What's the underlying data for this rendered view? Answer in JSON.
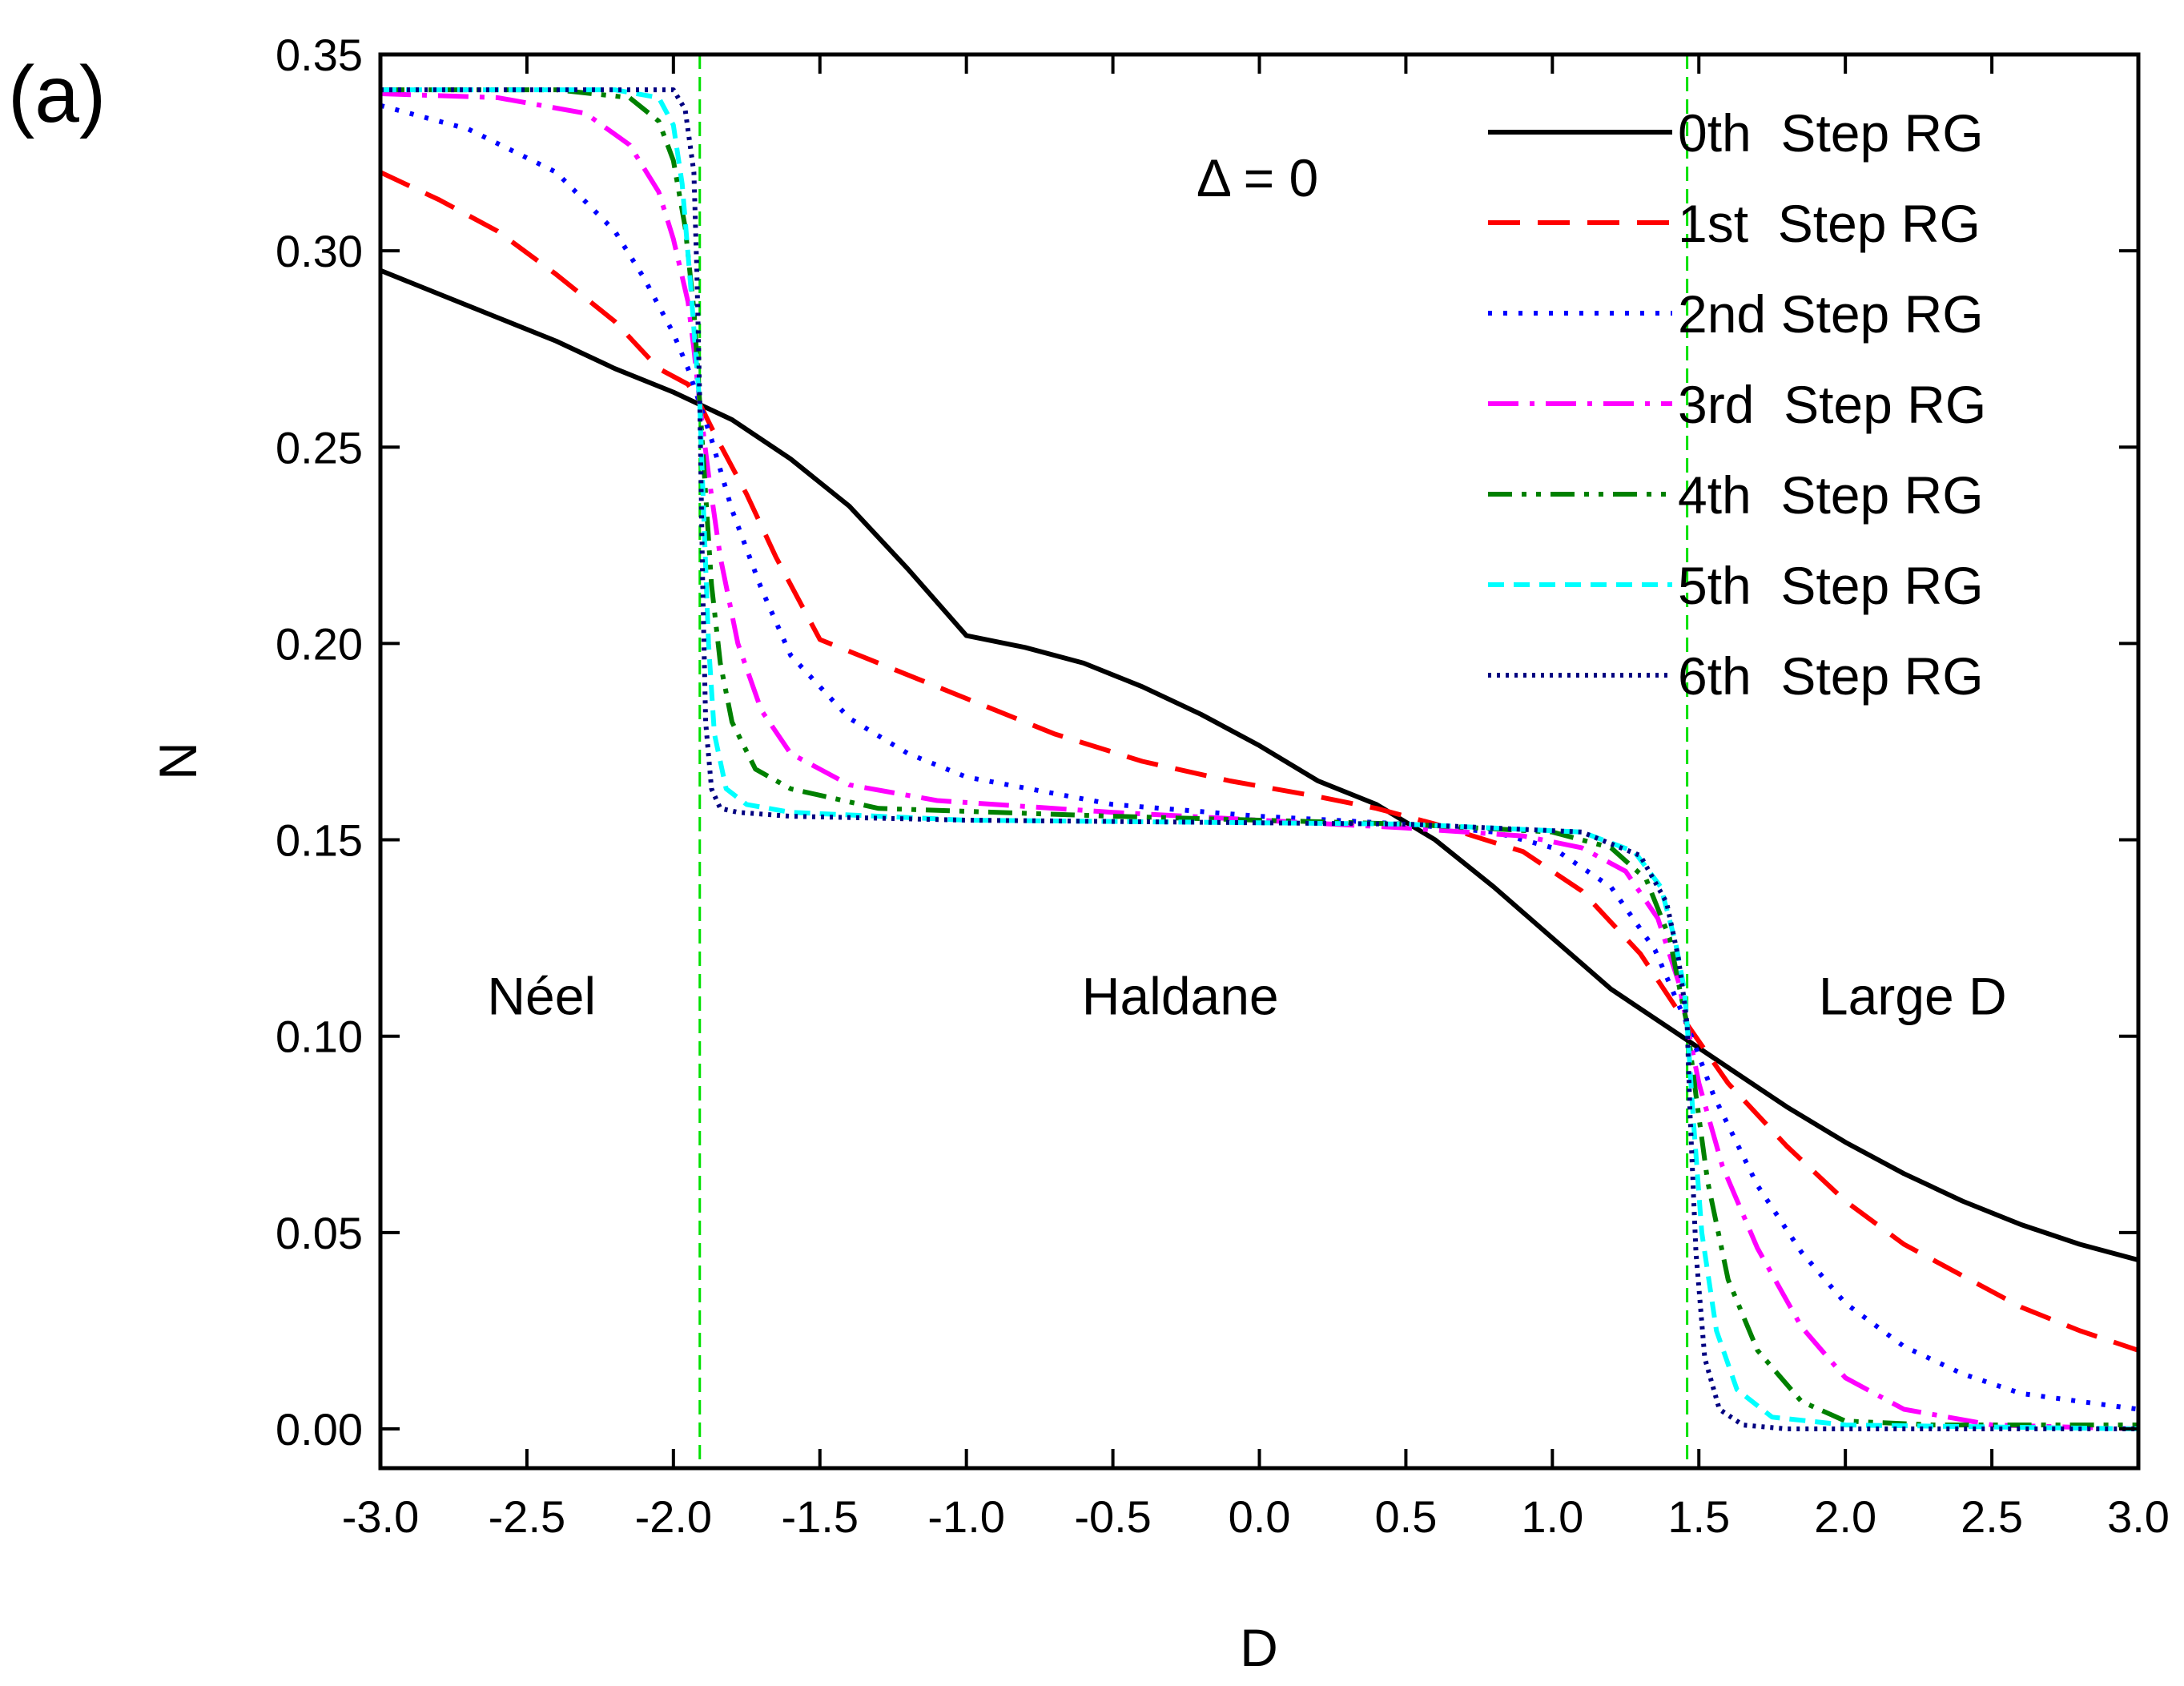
{
  "panel_label": "(a)",
  "chart_data": {
    "type": "line",
    "xlabel": "D",
    "ylabel": "N",
    "xlim": [
      -3.0,
      3.0
    ],
    "ylim": [
      -0.01,
      0.35
    ],
    "x_ticks": [
      -3.0,
      -2.5,
      -2.0,
      -1.5,
      -1.0,
      -0.5,
      0.0,
      0.5,
      1.0,
      1.5,
      2.0,
      2.5,
      3.0
    ],
    "x_tick_labels": [
      "-3.0",
      "-2.5",
      "-2.0",
      "-1.5",
      "-1.0",
      "-0.5",
      "0.0",
      "0.5",
      "1.0",
      "1.5",
      "2.0",
      "2.5",
      "3.0"
    ],
    "y_ticks": [
      0.0,
      0.05,
      0.1,
      0.15,
      0.2,
      0.25,
      0.3,
      0.35
    ],
    "y_tick_labels": [
      "0.00",
      "0.05",
      "0.10",
      "0.15",
      "0.20",
      "0.25",
      "0.30",
      "0.35"
    ],
    "annotation": "Δ = 0",
    "legend_position": "top-right",
    "phase_boundaries": [
      {
        "x": -1.91,
        "color": "#00E000"
      },
      {
        "x": 1.46,
        "color": "#00E000"
      }
    ],
    "region_labels": [
      {
        "text": "Néel",
        "x": -2.45,
        "y": 0.11
      },
      {
        "text": "Haldane",
        "x": -0.27,
        "y": 0.11
      },
      {
        "text": "Large D",
        "x": 2.23,
        "y": 0.11
      }
    ],
    "series": [
      {
        "name": "0th  Step RG",
        "color": "#000000",
        "dash": "solid",
        "x": [
          -3.0,
          -2.8,
          -2.6,
          -2.4,
          -2.2,
          -2.0,
          -1.8,
          -1.6,
          -1.4,
          -1.2,
          -1.0,
          -0.8,
          -0.6,
          -0.4,
          -0.2,
          0.0,
          0.2,
          0.4,
          0.6,
          0.8,
          1.0,
          1.2,
          1.4,
          1.6,
          1.8,
          2.0,
          2.2,
          2.4,
          2.6,
          2.8,
          3.0
        ],
        "y": [
          0.295,
          0.289,
          0.283,
          0.277,
          0.27,
          0.264,
          0.257,
          0.247,
          0.235,
          0.219,
          0.202,
          0.199,
          0.195,
          0.189,
          0.182,
          0.174,
          0.165,
          0.159,
          0.15,
          0.138,
          0.125,
          0.112,
          0.102,
          0.092,
          0.082,
          0.073,
          0.065,
          0.058,
          0.052,
          0.047,
          0.043
        ]
      },
      {
        "name": "1st  Step RG",
        "color": "#FF0000",
        "dash": "dashed",
        "x": [
          -3.0,
          -2.8,
          -2.6,
          -2.4,
          -2.2,
          -2.05,
          -1.95,
          -1.91,
          -1.85,
          -1.75,
          -1.65,
          -1.5,
          -1.3,
          -1.0,
          -0.7,
          -0.4,
          -0.1,
          0.2,
          0.4,
          0.6,
          0.9,
          1.1,
          1.3,
          1.46,
          1.6,
          1.8,
          2.0,
          2.2,
          2.4,
          2.6,
          2.8,
          3.0
        ],
        "y": [
          0.32,
          0.313,
          0.305,
          0.294,
          0.282,
          0.27,
          0.266,
          0.261,
          0.252,
          0.238,
          0.222,
          0.201,
          0.195,
          0.186,
          0.177,
          0.17,
          0.165,
          0.161,
          0.158,
          0.154,
          0.147,
          0.137,
          0.121,
          0.103,
          0.088,
          0.072,
          0.058,
          0.047,
          0.039,
          0.031,
          0.025,
          0.02
        ]
      },
      {
        "name": "2nd Step RG",
        "color": "#0000FF",
        "dash": "dotted",
        "x": [
          -3.0,
          -2.7,
          -2.4,
          -2.2,
          -2.1,
          -2.0,
          -1.95,
          -1.91,
          -1.87,
          -1.8,
          -1.7,
          -1.6,
          -1.4,
          -1.2,
          -1.0,
          -0.5,
          0.0,
          0.5,
          0.8,
          1.0,
          1.2,
          1.35,
          1.46,
          1.55,
          1.7,
          1.85,
          2.0,
          2.2,
          2.4,
          2.6,
          2.8,
          3.0
        ],
        "y": [
          0.337,
          0.331,
          0.32,
          0.305,
          0.293,
          0.279,
          0.27,
          0.261,
          0.252,
          0.234,
          0.214,
          0.197,
          0.181,
          0.172,
          0.166,
          0.159,
          0.156,
          0.154,
          0.152,
          0.148,
          0.138,
          0.122,
          0.103,
          0.085,
          0.062,
          0.045,
          0.032,
          0.021,
          0.014,
          0.009,
          0.007,
          0.005
        ]
      },
      {
        "name": "3rd  Step RG",
        "color": "#FF00FF",
        "dash": "dashdot",
        "x": [
          -3.0,
          -2.6,
          -2.3,
          -2.15,
          -2.05,
          -2.0,
          -1.95,
          -1.93,
          -1.91,
          -1.88,
          -1.84,
          -1.78,
          -1.7,
          -1.6,
          -1.4,
          -1.1,
          -0.5,
          0.0,
          0.5,
          0.9,
          1.1,
          1.25,
          1.36,
          1.43,
          1.46,
          1.5,
          1.58,
          1.7,
          1.85,
          2.0,
          2.2,
          2.5,
          3.0
        ],
        "y": [
          0.34,
          0.339,
          0.335,
          0.327,
          0.315,
          0.303,
          0.287,
          0.275,
          0.261,
          0.243,
          0.222,
          0.2,
          0.183,
          0.172,
          0.164,
          0.16,
          0.157,
          0.155,
          0.153,
          0.151,
          0.148,
          0.142,
          0.13,
          0.114,
          0.103,
          0.088,
          0.067,
          0.046,
          0.026,
          0.013,
          0.005,
          0.001,
          0.0
        ]
      },
      {
        "name": "4th  Step RG",
        "color": "#008000",
        "dash": "dashdotdot",
        "x": [
          -3.0,
          -2.4,
          -2.15,
          -2.05,
          -2.0,
          -1.96,
          -1.93,
          -1.91,
          -1.89,
          -1.87,
          -1.84,
          -1.8,
          -1.72,
          -1.6,
          -1.3,
          -0.5,
          0.5,
          1.0,
          1.2,
          1.32,
          1.4,
          1.44,
          1.46,
          1.49,
          1.53,
          1.6,
          1.7,
          1.85,
          2.0,
          2.3,
          3.0
        ],
        "y": [
          0.341,
          0.341,
          0.339,
          0.333,
          0.323,
          0.306,
          0.285,
          0.261,
          0.238,
          0.215,
          0.195,
          0.18,
          0.168,
          0.163,
          0.158,
          0.156,
          0.154,
          0.152,
          0.148,
          0.14,
          0.125,
          0.11,
          0.103,
          0.085,
          0.063,
          0.038,
          0.02,
          0.007,
          0.002,
          0.001,
          0.001
        ]
      },
      {
        "name": "5th  Step RG",
        "color": "#00FFFF",
        "dash": "shortdash",
        "x": [
          -3.0,
          -2.2,
          -2.05,
          -2.0,
          -1.97,
          -1.94,
          -1.92,
          -1.91,
          -1.9,
          -1.88,
          -1.86,
          -1.82,
          -1.75,
          -1.6,
          -1.0,
          0.5,
          1.1,
          1.28,
          1.37,
          1.42,
          1.45,
          1.46,
          1.48,
          1.51,
          1.56,
          1.63,
          1.75,
          2.0,
          3.0
        ],
        "y": [
          0.341,
          0.341,
          0.339,
          0.332,
          0.317,
          0.29,
          0.27,
          0.261,
          0.24,
          0.2,
          0.177,
          0.163,
          0.159,
          0.157,
          0.155,
          0.154,
          0.152,
          0.147,
          0.138,
          0.124,
          0.112,
          0.103,
          0.08,
          0.05,
          0.025,
          0.01,
          0.003,
          0.001,
          0.0
        ]
      },
      {
        "name": "6th  Step RG",
        "color": "#000080",
        "dash": "densedot",
        "x": [
          -3.0,
          -2.0,
          -1.96,
          -1.93,
          -1.92,
          -1.91,
          -1.9,
          -1.89,
          -1.87,
          -1.84,
          -1.78,
          -1.6,
          -1.0,
          0.5,
          1.1,
          1.3,
          1.39,
          1.43,
          1.45,
          1.46,
          1.47,
          1.49,
          1.52,
          1.57,
          1.65,
          1.8,
          3.0
        ],
        "y": [
          0.341,
          0.341,
          0.336,
          0.32,
          0.295,
          0.261,
          0.215,
          0.18,
          0.163,
          0.158,
          0.157,
          0.156,
          0.155,
          0.154,
          0.152,
          0.146,
          0.134,
          0.12,
          0.109,
          0.103,
          0.08,
          0.045,
          0.018,
          0.005,
          0.001,
          0.0,
          0.0
        ]
      }
    ]
  }
}
